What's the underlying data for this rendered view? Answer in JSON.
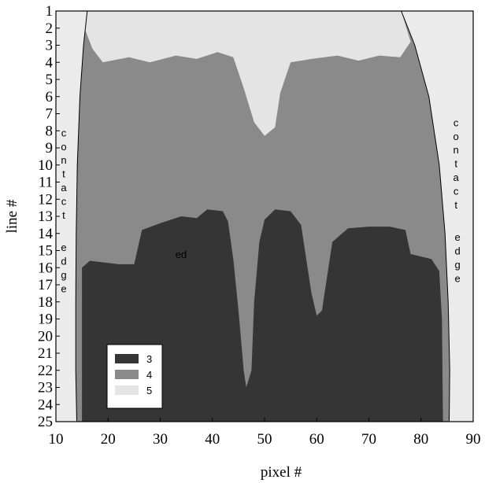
{
  "chart_data": {
    "type": "heatmap",
    "title": "",
    "xlabel": "pixel #",
    "ylabel": "line #",
    "xlim": [
      10,
      90
    ],
    "ylim": [
      1,
      25
    ],
    "y_inverted": true,
    "x_ticks": [
      10,
      20,
      30,
      40,
      50,
      60,
      70,
      80,
      90
    ],
    "y_ticks": [
      1,
      2,
      3,
      4,
      5,
      6,
      7,
      8,
      9,
      10,
      11,
      12,
      13,
      14,
      15,
      16,
      17,
      18,
      19,
      20,
      21,
      22,
      23,
      24,
      25
    ],
    "grid": false,
    "levels": [
      {
        "value": "3",
        "color": "#353535"
      },
      {
        "value": "4",
        "color": "#8a8a8a"
      },
      {
        "value": "5",
        "color": "#e4e4e4"
      }
    ],
    "legend_position": "bottom-left",
    "contact_edge": {
      "left": [
        [
          16,
          1
        ],
        [
          15.3,
          3
        ],
        [
          14.6,
          6
        ],
        [
          14.1,
          10
        ],
        [
          13.9,
          14
        ],
        [
          13.8,
          18
        ],
        [
          13.8,
          22
        ],
        [
          14,
          25
        ]
      ],
      "right": [
        [
          76.2,
          1
        ],
        [
          78.8,
          3
        ],
        [
          81.5,
          6
        ],
        [
          83.5,
          10
        ],
        [
          84.6,
          14
        ],
        [
          85.2,
          18
        ],
        [
          85.5,
          22
        ],
        [
          85.4,
          25
        ]
      ]
    },
    "level3_boundary": [
      [
        15,
        25
      ],
      [
        15,
        16
      ],
      [
        16.5,
        15.6
      ],
      [
        22,
        15.8
      ],
      [
        25,
        15.8
      ],
      [
        26.5,
        13.8
      ],
      [
        30,
        13.4
      ],
      [
        34,
        13.0
      ],
      [
        37,
        13.1
      ],
      [
        39,
        12.6
      ],
      [
        42,
        12.7
      ],
      [
        43,
        13.3
      ],
      [
        44,
        15.5
      ],
      [
        45,
        18.5
      ],
      [
        46,
        22
      ],
      [
        46.5,
        23
      ],
      [
        47.5,
        22
      ],
      [
        48,
        18
      ],
      [
        49,
        14.5
      ],
      [
        50,
        13.2
      ],
      [
        52,
        12.6
      ],
      [
        55,
        12.7
      ],
      [
        57,
        13.5
      ],
      [
        58,
        15.5
      ],
      [
        59,
        17.5
      ],
      [
        60,
        18.8
      ],
      [
        61,
        18.5
      ],
      [
        62,
        16.5
      ],
      [
        63,
        14.5
      ],
      [
        66,
        13.7
      ],
      [
        70,
        13.6
      ],
      [
        74,
        13.6
      ],
      [
        77,
        13.8
      ],
      [
        78,
        15.2
      ],
      [
        82,
        15.5
      ],
      [
        83.5,
        16.2
      ],
      [
        84,
        19
      ],
      [
        84.2,
        25
      ]
    ],
    "level5_boundary": [
      [
        16,
        1
      ],
      [
        15.5,
        2
      ],
      [
        17,
        3.2
      ],
      [
        19,
        4.0
      ],
      [
        24,
        3.7
      ],
      [
        28,
        4.0
      ],
      [
        33,
        3.6
      ],
      [
        37,
        3.8
      ],
      [
        41,
        3.4
      ],
      [
        44,
        3.7
      ],
      [
        46,
        5.5
      ],
      [
        48,
        7.5
      ],
      [
        50,
        8.3
      ],
      [
        52,
        7.8
      ],
      [
        53,
        5.8
      ],
      [
        55,
        4.0
      ],
      [
        59,
        3.8
      ],
      [
        64,
        3.6
      ],
      [
        68,
        3.9
      ],
      [
        72,
        3.6
      ],
      [
        76,
        3.7
      ],
      [
        78,
        2.8
      ],
      [
        76.2,
        1
      ]
    ],
    "annotations": [
      {
        "text": "c",
        "x": 11.5,
        "y": 8.1
      },
      {
        "text": "o",
        "x": 11.5,
        "y": 8.9
      },
      {
        "text": "n",
        "x": 11.5,
        "y": 9.7
      },
      {
        "text": "t",
        "x": 11.5,
        "y": 10.5
      },
      {
        "text": "a",
        "x": 11.5,
        "y": 11.3
      },
      {
        "text": "c",
        "x": 11.5,
        "y": 12.1
      },
      {
        "text": "t",
        "x": 11.5,
        "y": 12.9
      },
      {
        "text": "e",
        "x": 11.5,
        "y": 14.8
      },
      {
        "text": "d",
        "x": 11.5,
        "y": 15.6
      },
      {
        "text": "g",
        "x": 11.5,
        "y": 16.4
      },
      {
        "text": "e",
        "x": 11.5,
        "y": 17.2
      },
      {
        "text": "c",
        "x": 86.7,
        "y": 7.5
      },
      {
        "text": "o",
        "x": 86.7,
        "y": 8.3
      },
      {
        "text": "n",
        "x": 86.7,
        "y": 9.1
      },
      {
        "text": "t",
        "x": 86.7,
        "y": 9.9
      },
      {
        "text": "a",
        "x": 86.7,
        "y": 10.7
      },
      {
        "text": "c",
        "x": 86.7,
        "y": 11.5
      },
      {
        "text": "t",
        "x": 86.7,
        "y": 12.3
      },
      {
        "text": "e",
        "x": 87,
        "y": 14.2
      },
      {
        "text": "d",
        "x": 87,
        "y": 15.0
      },
      {
        "text": "g",
        "x": 87,
        "y": 15.8
      },
      {
        "text": "e",
        "x": 87,
        "y": 16.6
      },
      {
        "text": "ed",
        "x": 34,
        "y": 15.2
      }
    ]
  }
}
